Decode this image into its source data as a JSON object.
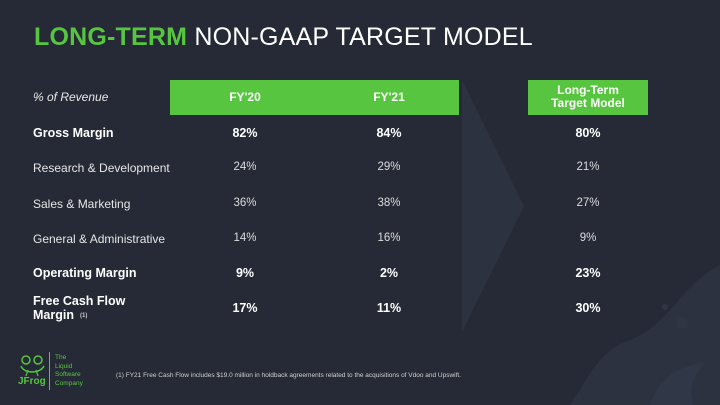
{
  "title": {
    "highlight": "LONG-TERM",
    "rest": "NON-GAAP TARGET MODEL"
  },
  "table": {
    "header_label": "% of Revenue",
    "columns": [
      "FY'20",
      "FY'21"
    ],
    "target_header_line1": "Long-Term",
    "target_header_line2": "Target Model",
    "rows": [
      {
        "label": "Gross Margin",
        "fy20": "82%",
        "fy21": "84%",
        "target": "80%"
      },
      {
        "label": "Research & Development",
        "fy20": "24%",
        "fy21": "29%",
        "target": "21%"
      },
      {
        "label": "Sales & Marketing",
        "fy20": "36%",
        "fy21": "38%",
        "target": "27%"
      },
      {
        "label": "General & Administrative",
        "fy20": "14%",
        "fy21": "16%",
        "target": "9%"
      },
      {
        "label": "Operating Margin",
        "fy20": "9%",
        "fy21": "2%",
        "target": "23%"
      },
      {
        "label_line1": "Free Cash Flow",
        "label_line2": "Margin",
        "note_marker": "(1)",
        "fy20": "17%",
        "fy21": "11%",
        "target": "30%"
      }
    ]
  },
  "footnote": "(1) FY21 Free Cash Flow includes $19.0 million in holdback agreements related to the acquisitions of Vdoo and Upswift.",
  "brand": {
    "name": "JFrog",
    "tagline": [
      "The",
      "Liquid",
      "Software",
      "Company"
    ],
    "logo_icon": "frog-icon",
    "accent_color": "#57c53f",
    "background_color": "#252a36"
  }
}
